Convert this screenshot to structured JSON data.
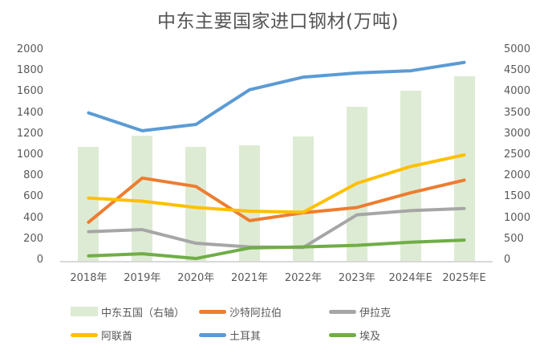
{
  "chart_data": {
    "type": "combo",
    "title": "中东主要国家进口钢材(万吨)",
    "categories": [
      "2018年",
      "2019年",
      "2020年",
      "2021年",
      "2022年",
      "2023年",
      "2024年E",
      "2025年E"
    ],
    "left_axis": {
      "min": 0,
      "max": 2000,
      "step": 200
    },
    "right_axis": {
      "min": 0,
      "max": 5000,
      "step": 500
    },
    "grid": false,
    "legend_position": "bottom",
    "series": [
      {
        "name": "中东五国（右轴）",
        "type": "bar",
        "axis": "right",
        "color": "#DEEBD4",
        "values": [
          2700,
          2950,
          2700,
          2730,
          2930,
          3650,
          4020,
          4370
        ]
      },
      {
        "name": "沙特阿拉伯",
        "type": "line",
        "axis": "left",
        "color": "#ED7D31",
        "values": [
          360,
          780,
          700,
          375,
          450,
          500,
          640,
          760
        ]
      },
      {
        "name": "伊拉克",
        "type": "line",
        "axis": "left",
        "color": "#A6A6A6",
        "values": [
          270,
          290,
          160,
          125,
          120,
          430,
          470,
          490
        ]
      },
      {
        "name": "阿联酋",
        "type": "line",
        "axis": "left",
        "color": "#FFC000",
        "values": [
          590,
          560,
          500,
          465,
          455,
          730,
          890,
          1000
        ]
      },
      {
        "name": "土耳其",
        "type": "line",
        "axis": "left",
        "color": "#5B9BD5",
        "values": [
          1400,
          1230,
          1290,
          1620,
          1740,
          1780,
          1800,
          1880
        ]
      },
      {
        "name": "埃及",
        "type": "line",
        "axis": "left",
        "color": "#70AD47",
        "values": [
          40,
          60,
          15,
          115,
          125,
          140,
          170,
          190
        ]
      }
    ]
  },
  "colors": {
    "background": "#FFFFFF",
    "title_text": "#555555",
    "tick_text": "#595959",
    "axis_line": "#D9D9D9"
  }
}
